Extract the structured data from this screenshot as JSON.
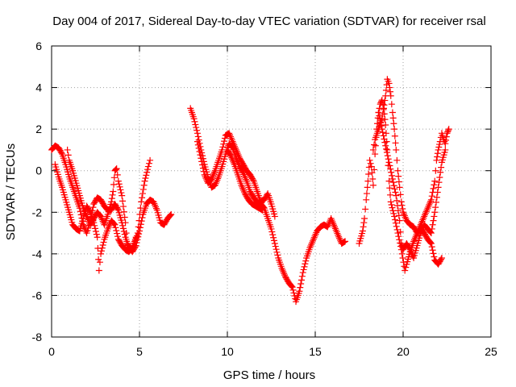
{
  "chart_data": {
    "type": "scatter",
    "title": "Day 004 of 2017, Sidereal Day-to-day VTEC variation (SDTVAR) for receiver rsal",
    "xlabel": "GPS time / hours",
    "ylabel": "SDTVAR / TECUs",
    "xlim": [
      0,
      25
    ],
    "ylim": [
      -8,
      6
    ],
    "xticks": [
      0,
      5,
      10,
      15,
      20,
      25
    ],
    "yticks": [
      -8,
      -6,
      -4,
      -2,
      0,
      2,
      4,
      6
    ],
    "grid": true,
    "marker": "+",
    "series": [
      {
        "name": "SDTVAR",
        "color": "#ff0000",
        "segments": [
          [
            [
              0.0,
              1.0
            ],
            [
              0.2,
              1.2
            ],
            [
              0.4,
              1.1
            ],
            [
              0.6,
              0.8
            ],
            [
              0.8,
              0.3
            ],
            [
              1.0,
              -0.3
            ],
            [
              1.2,
              -0.8
            ],
            [
              1.4,
              -1.3
            ],
            [
              1.6,
              -1.8
            ],
            [
              1.8,
              -2.6
            ],
            [
              2.0,
              -3.0
            ],
            [
              2.2,
              -2.4
            ],
            [
              2.4,
              -1.6
            ],
            [
              2.6,
              -1.3
            ],
            [
              2.8,
              -1.4
            ],
            [
              3.0,
              -1.7
            ],
            [
              3.2,
              -1.9
            ],
            [
              3.4,
              -1.9
            ],
            [
              3.6,
              -1.6
            ],
            [
              3.8,
              -1.9
            ],
            [
              4.0,
              -2.5
            ],
            [
              4.2,
              -3.2
            ],
            [
              4.4,
              -3.7
            ],
            [
              4.6,
              -3.9
            ],
            [
              4.8,
              -3.6
            ],
            [
              5.0,
              -2.9
            ],
            [
              5.2,
              -2.1
            ],
            [
              5.4,
              -1.6
            ],
            [
              5.6,
              -1.4
            ],
            [
              5.8,
              -1.5
            ],
            [
              6.0,
              -1.9
            ],
            [
              6.2,
              -2.5
            ],
            [
              6.4,
              -2.6
            ],
            [
              6.6,
              -2.3
            ],
            [
              6.8,
              -2.1
            ]
          ],
          [
            [
              0.2,
              0.3
            ],
            [
              0.4,
              -0.3
            ],
            [
              0.6,
              -0.8
            ],
            [
              0.8,
              -1.4
            ],
            [
              1.0,
              -2.0
            ],
            [
              1.2,
              -2.6
            ],
            [
              1.4,
              -2.8
            ],
            [
              1.6,
              -2.9
            ],
            [
              1.8,
              -2.3
            ],
            [
              2.0,
              -1.7
            ],
            [
              2.2,
              -2.0
            ],
            [
              2.4,
              -2.5
            ],
            [
              2.6,
              -3.2
            ],
            [
              2.7,
              -4.8
            ],
            [
              2.8,
              -4.0
            ],
            [
              3.0,
              -3.3
            ],
            [
              3.2,
              -2.8
            ],
            [
              3.4,
              -2.4
            ],
            [
              3.6,
              -2.6
            ],
            [
              3.8,
              -3.3
            ],
            [
              4.0,
              -3.6
            ],
            [
              4.2,
              -3.8
            ],
            [
              4.4,
              -3.9
            ],
            [
              4.6,
              -3.7
            ],
            [
              4.8,
              -3.2
            ]
          ],
          [
            [
              0.9,
              1.0
            ],
            [
              1.0,
              0.5
            ],
            [
              1.2,
              0.0
            ],
            [
              1.4,
              -0.6
            ],
            [
              1.6,
              -1.2
            ],
            [
              1.8,
              -1.8
            ],
            [
              2.0,
              -2.2
            ],
            [
              2.2,
              -2.6
            ],
            [
              2.4,
              -2.3
            ],
            [
              2.6,
              -2.0
            ],
            [
              2.8,
              -2.2
            ],
            [
              3.0,
              -2.6
            ],
            [
              3.2,
              -2.1
            ],
            [
              3.4,
              -1.5
            ],
            [
              3.5,
              -1.0
            ],
            [
              3.6,
              0.0
            ],
            [
              3.7,
              0.1
            ],
            [
              3.8,
              -0.5
            ],
            [
              4.0,
              -1.2
            ],
            [
              4.2,
              -2.5
            ],
            [
              4.3,
              -3.5
            ],
            [
              4.5,
              -3.8
            ],
            [
              4.7,
              -3.6
            ],
            [
              4.9,
              -3.0
            ],
            [
              5.1,
              -1.5
            ],
            [
              5.3,
              -0.5
            ],
            [
              5.5,
              0.2
            ],
            [
              5.6,
              0.5
            ]
          ],
          [
            [
              7.9,
              3.0
            ],
            [
              8.1,
              2.5
            ],
            [
              8.3,
              1.8
            ],
            [
              8.5,
              1.0
            ],
            [
              8.7,
              0.3
            ],
            [
              8.9,
              -0.3
            ],
            [
              9.1,
              -0.8
            ],
            [
              9.3,
              -0.7
            ],
            [
              9.5,
              -0.3
            ],
            [
              9.7,
              0.2
            ],
            [
              9.9,
              0.8
            ],
            [
              10.1,
              1.3
            ],
            [
              10.3,
              1.1
            ],
            [
              10.5,
              0.6
            ],
            [
              10.7,
              0.2
            ],
            [
              10.9,
              -0.1
            ],
            [
              11.1,
              -0.5
            ],
            [
              11.3,
              -1.0
            ],
            [
              11.5,
              -1.3
            ],
            [
              11.7,
              -1.5
            ],
            [
              11.9,
              -1.6
            ],
            [
              12.1,
              -1.8
            ],
            [
              12.3,
              -2.3
            ],
            [
              12.5,
              -2.8
            ],
            [
              12.7,
              -3.5
            ],
            [
              12.9,
              -4.2
            ],
            [
              13.1,
              -4.7
            ],
            [
              13.3,
              -5.1
            ],
            [
              13.5,
              -5.4
            ],
            [
              13.7,
              -5.6
            ],
            [
              13.9,
              -6.3
            ],
            [
              14.1,
              -5.8
            ],
            [
              14.3,
              -4.9
            ],
            [
              14.5,
              -4.2
            ],
            [
              14.7,
              -3.7
            ],
            [
              14.9,
              -3.3
            ],
            [
              15.1,
              -2.9
            ],
            [
              15.3,
              -2.7
            ],
            [
              15.5,
              -2.6
            ],
            [
              15.7,
              -2.7
            ],
            [
              15.9,
              -2.3
            ],
            [
              16.1,
              -2.7
            ],
            [
              16.3,
              -3.1
            ],
            [
              16.5,
              -3.5
            ],
            [
              16.7,
              -3.4
            ]
          ],
          [
            [
              8.3,
              1.4
            ],
            [
              8.5,
              0.6
            ],
            [
              8.7,
              -0.2
            ],
            [
              8.9,
              -0.6
            ],
            [
              9.1,
              -0.4
            ],
            [
              9.3,
              0.0
            ],
            [
              9.5,
              0.5
            ],
            [
              9.7,
              1.0
            ],
            [
              9.9,
              1.7
            ],
            [
              10.1,
              1.8
            ],
            [
              10.3,
              1.4
            ],
            [
              10.5,
              1.0
            ],
            [
              10.7,
              0.6
            ],
            [
              10.9,
              0.3
            ],
            [
              11.1,
              0.0
            ],
            [
              11.3,
              -0.2
            ],
            [
              11.5,
              -0.5
            ],
            [
              11.7,
              -1.0
            ],
            [
              11.9,
              -1.5
            ],
            [
              12.1,
              -1.4
            ],
            [
              12.3,
              -1.1
            ],
            [
              12.5,
              -1.6
            ],
            [
              12.7,
              -2.2
            ]
          ],
          [
            [
              10.0,
              1.0
            ],
            [
              10.2,
              0.7
            ],
            [
              10.4,
              0.3
            ],
            [
              10.6,
              -0.2
            ],
            [
              10.8,
              -0.7
            ],
            [
              11.0,
              -1.1
            ],
            [
              11.2,
              -1.4
            ],
            [
              11.4,
              -1.6
            ],
            [
              11.6,
              -1.7
            ],
            [
              11.8,
              -1.8
            ],
            [
              12.0,
              -1.9
            ]
          ],
          [
            [
              17.5,
              -3.5
            ],
            [
              17.7,
              -2.9
            ],
            [
              17.8,
              -2.3
            ],
            [
              17.9,
              -1.4
            ],
            [
              18.0,
              -0.5
            ],
            [
              18.1,
              0.5
            ],
            [
              18.2,
              0.2
            ],
            [
              18.3,
              -0.7
            ],
            [
              18.4,
              0.8
            ],
            [
              18.5,
              2.0
            ],
            [
              18.6,
              2.8
            ],
            [
              18.7,
              3.2
            ],
            [
              18.8,
              3.4
            ],
            [
              18.9,
              3.0
            ],
            [
              19.0,
              2.2
            ],
            [
              19.1,
              1.0
            ],
            [
              19.2,
              -0.5
            ],
            [
              19.3,
              -1.5
            ],
            [
              19.5,
              -2.2
            ],
            [
              19.7,
              -3.0
            ],
            [
              19.9,
              -3.8
            ],
            [
              20.1,
              -4.8
            ],
            [
              20.2,
              -4.5
            ],
            [
              20.4,
              -3.9
            ],
            [
              20.6,
              -3.4
            ],
            [
              20.8,
              -3.0
            ],
            [
              21.0,
              -2.8
            ],
            [
              21.2,
              -3.0
            ],
            [
              21.4,
              -3.3
            ],
            [
              21.6,
              -3.5
            ],
            [
              21.8,
              -4.3
            ],
            [
              22.0,
              -4.5
            ],
            [
              22.2,
              -4.2
            ]
          ],
          [
            [
              18.3,
              1.0
            ],
            [
              18.4,
              1.5
            ],
            [
              18.6,
              2.0
            ],
            [
              18.8,
              2.5
            ],
            [
              19.0,
              3.6
            ],
            [
              19.1,
              4.4
            ],
            [
              19.2,
              4.2
            ],
            [
              19.3,
              3.6
            ],
            [
              19.4,
              2.8
            ],
            [
              19.5,
              2.0
            ],
            [
              19.6,
              1.0
            ],
            [
              19.7,
              0.0
            ],
            [
              19.8,
              -0.8
            ],
            [
              19.9,
              -1.5
            ],
            [
              20.0,
              -2.0
            ],
            [
              20.2,
              -2.4
            ],
            [
              20.4,
              -2.6
            ],
            [
              20.6,
              -2.7
            ],
            [
              20.8,
              -3.0
            ],
            [
              21.0,
              -2.6
            ],
            [
              21.2,
              -2.2
            ],
            [
              21.4,
              -1.8
            ],
            [
              21.6,
              -1.4
            ],
            [
              21.8,
              -0.5
            ],
            [
              21.9,
              0.5
            ],
            [
              22.0,
              1.0
            ],
            [
              22.1,
              1.4
            ],
            [
              22.2,
              1.8
            ],
            [
              22.3,
              1.5
            ],
            [
              22.4,
              1.3
            ],
            [
              22.5,
              1.8
            ],
            [
              22.6,
              2.0
            ]
          ],
          [
            [
              18.6,
              2.8
            ],
            [
              18.8,
              2.0
            ],
            [
              19.0,
              1.2
            ],
            [
              19.2,
              0.4
            ],
            [
              19.4,
              -0.4
            ],
            [
              19.6,
              -1.2
            ],
            [
              19.8,
              -2.4
            ],
            [
              19.9,
              -3.5
            ],
            [
              20.0,
              -3.8
            ],
            [
              20.2,
              -3.5
            ],
            [
              20.4,
              -3.8
            ],
            [
              20.6,
              -4.2
            ],
            [
              20.8,
              -3.6
            ],
            [
              21.0,
              -3.0
            ],
            [
              21.2,
              -2.6
            ],
            [
              21.4,
              -2.8
            ],
            [
              21.6,
              -3.0
            ],
            [
              21.8,
              -2.0
            ],
            [
              22.0,
              -0.8
            ],
            [
              22.2,
              0.4
            ],
            [
              22.4,
              1.0
            ]
          ]
        ]
      }
    ]
  }
}
